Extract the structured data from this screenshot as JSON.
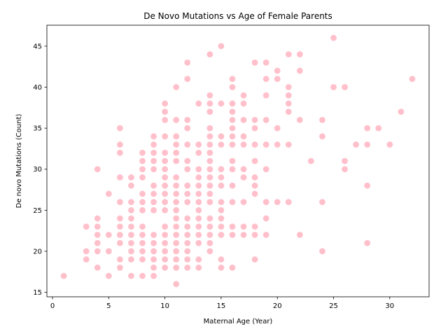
{
  "chart_data": {
    "type": "scatter",
    "title": "De Novo Mutations vs Age of Female Parents",
    "xlabel": "Maternal Age (Year)",
    "ylabel": "De novo Mutations (Count)",
    "xlim": [
      -0.5,
      33.5
    ],
    "ylim": [
      14.45,
      47.55
    ],
    "x_ticks": [
      0,
      5,
      10,
      15,
      20,
      25,
      30
    ],
    "y_ticks": [
      15,
      20,
      25,
      30,
      35,
      40,
      45
    ],
    "grid": false,
    "marker_color": "#ffc0cb",
    "points": [
      [
        1,
        17
      ],
      [
        3,
        19
      ],
      [
        3,
        20
      ],
      [
        3,
        23
      ],
      [
        4,
        18
      ],
      [
        4,
        20
      ],
      [
        4,
        21
      ],
      [
        4,
        22
      ],
      [
        4,
        23
      ],
      [
        4,
        24
      ],
      [
        4,
        30
      ],
      [
        5,
        17
      ],
      [
        5,
        20
      ],
      [
        5,
        22
      ],
      [
        5,
        27
      ],
      [
        6,
        18
      ],
      [
        6,
        19
      ],
      [
        6,
        21
      ],
      [
        6,
        22
      ],
      [
        6,
        23
      ],
      [
        6,
        24
      ],
      [
        6,
        26
      ],
      [
        6,
        29
      ],
      [
        6,
        32
      ],
      [
        6,
        33
      ],
      [
        6,
        35
      ],
      [
        7,
        17
      ],
      [
        7,
        19
      ],
      [
        7,
        20
      ],
      [
        7,
        21
      ],
      [
        7,
        22
      ],
      [
        7,
        23
      ],
      [
        7,
        24
      ],
      [
        7,
        25
      ],
      [
        7,
        26
      ],
      [
        7,
        28
      ],
      [
        7,
        29
      ],
      [
        8,
        17
      ],
      [
        8,
        19
      ],
      [
        8,
        20
      ],
      [
        8,
        21
      ],
      [
        8,
        22
      ],
      [
        8,
        23
      ],
      [
        8,
        25
      ],
      [
        8,
        26
      ],
      [
        8,
        27
      ],
      [
        8,
        29
      ],
      [
        8,
        30
      ],
      [
        8,
        31
      ],
      [
        8,
        32
      ],
      [
        9,
        17
      ],
      [
        9,
        18
      ],
      [
        9,
        19
      ],
      [
        9,
        20
      ],
      [
        9,
        21
      ],
      [
        9,
        22
      ],
      [
        9,
        25
      ],
      [
        9,
        26
      ],
      [
        9,
        27
      ],
      [
        9,
        28
      ],
      [
        9,
        30
      ],
      [
        9,
        31
      ],
      [
        9,
        32
      ],
      [
        9,
        33
      ],
      [
        9,
        34
      ],
      [
        10,
        18
      ],
      [
        10,
        19
      ],
      [
        10,
        20
      ],
      [
        10,
        21
      ],
      [
        10,
        22
      ],
      [
        10,
        23
      ],
      [
        10,
        25
      ],
      [
        10,
        26
      ],
      [
        10,
        27
      ],
      [
        10,
        28
      ],
      [
        10,
        29
      ],
      [
        10,
        30
      ],
      [
        10,
        31
      ],
      [
        10,
        32
      ],
      [
        10,
        34
      ],
      [
        10,
        36
      ],
      [
        10,
        37
      ],
      [
        10,
        38
      ],
      [
        11,
        16
      ],
      [
        11,
        18
      ],
      [
        11,
        19
      ],
      [
        11,
        20
      ],
      [
        11,
        21
      ],
      [
        11,
        22
      ],
      [
        11,
        23
      ],
      [
        11,
        24
      ],
      [
        11,
        25
      ],
      [
        11,
        26
      ],
      [
        11,
        27
      ],
      [
        11,
        28
      ],
      [
        11,
        29
      ],
      [
        11,
        31
      ],
      [
        11,
        32
      ],
      [
        11,
        33
      ],
      [
        11,
        34
      ],
      [
        11,
        36
      ],
      [
        11,
        40
      ],
      [
        12,
        18
      ],
      [
        12,
        19
      ],
      [
        12,
        20
      ],
      [
        12,
        21
      ],
      [
        12,
        22
      ],
      [
        12,
        23
      ],
      [
        12,
        24
      ],
      [
        12,
        26
      ],
      [
        12,
        27
      ],
      [
        12,
        28
      ],
      [
        12,
        30
      ],
      [
        12,
        31
      ],
      [
        12,
        33
      ],
      [
        12,
        35
      ],
      [
        12,
        36
      ],
      [
        12,
        41
      ],
      [
        12,
        43
      ],
      [
        13,
        18
      ],
      [
        13,
        19
      ],
      [
        13,
        21
      ],
      [
        13,
        22
      ],
      [
        13,
        23
      ],
      [
        13,
        24
      ],
      [
        13,
        25
      ],
      [
        13,
        26
      ],
      [
        13,
        27
      ],
      [
        13,
        28
      ],
      [
        13,
        29
      ],
      [
        13,
        30
      ],
      [
        13,
        32
      ],
      [
        13,
        33
      ],
      [
        13,
        38
      ],
      [
        14,
        20
      ],
      [
        14,
        21
      ],
      [
        14,
        22
      ],
      [
        14,
        23
      ],
      [
        14,
        24
      ],
      [
        14,
        26
      ],
      [
        14,
        27
      ],
      [
        14,
        28
      ],
      [
        14,
        29
      ],
      [
        14,
        30
      ],
      [
        14,
        31
      ],
      [
        14,
        32
      ],
      [
        14,
        33
      ],
      [
        14,
        34
      ],
      [
        14,
        35
      ],
      [
        14,
        37
      ],
      [
        14,
        38
      ],
      [
        14,
        39
      ],
      [
        14,
        44
      ],
      [
        15,
        18
      ],
      [
        15,
        19
      ],
      [
        15,
        22
      ],
      [
        15,
        23
      ],
      [
        15,
        24
      ],
      [
        15,
        25
      ],
      [
        15,
        26
      ],
      [
        15,
        28
      ],
      [
        15,
        29
      ],
      [
        15,
        30
      ],
      [
        15,
        33
      ],
      [
        15,
        34
      ],
      [
        15,
        38
      ],
      [
        15,
        45
      ],
      [
        16,
        18
      ],
      [
        16,
        22
      ],
      [
        16,
        23
      ],
      [
        16,
        26
      ],
      [
        16,
        28
      ],
      [
        16,
        30
      ],
      [
        16,
        31
      ],
      [
        16,
        33
      ],
      [
        16,
        34
      ],
      [
        16,
        35
      ],
      [
        16,
        36
      ],
      [
        16,
        37
      ],
      [
        16,
        38
      ],
      [
        16,
        40
      ],
      [
        16,
        41
      ],
      [
        17,
        22
      ],
      [
        17,
        23
      ],
      [
        17,
        26
      ],
      [
        17,
        29
      ],
      [
        17,
        30
      ],
      [
        17,
        33
      ],
      [
        17,
        34
      ],
      [
        17,
        36
      ],
      [
        17,
        38
      ],
      [
        17,
        39
      ],
      [
        18,
        19
      ],
      [
        18,
        22
      ],
      [
        18,
        23
      ],
      [
        18,
        27
      ],
      [
        18,
        28
      ],
      [
        18,
        29
      ],
      [
        18,
        31
      ],
      [
        18,
        33
      ],
      [
        18,
        35
      ],
      [
        18,
        36
      ],
      [
        18,
        43
      ],
      [
        19,
        22
      ],
      [
        19,
        24
      ],
      [
        19,
        26
      ],
      [
        19,
        30
      ],
      [
        19,
        33
      ],
      [
        19,
        36
      ],
      [
        19,
        39
      ],
      [
        19,
        41
      ],
      [
        19,
        43
      ],
      [
        20,
        26
      ],
      [
        20,
        33
      ],
      [
        20,
        35
      ],
      [
        20,
        41
      ],
      [
        20,
        42
      ],
      [
        21,
        26
      ],
      [
        21,
        33
      ],
      [
        21,
        37
      ],
      [
        21,
        38
      ],
      [
        21,
        39
      ],
      [
        21,
        40
      ],
      [
        21,
        44
      ],
      [
        22,
        22
      ],
      [
        22,
        36
      ],
      [
        22,
        42
      ],
      [
        22,
        44
      ],
      [
        23,
        31
      ],
      [
        24,
        20
      ],
      [
        24,
        26
      ],
      [
        24,
        34
      ],
      [
        24,
        36
      ],
      [
        25,
        40
      ],
      [
        25,
        46
      ],
      [
        26,
        30
      ],
      [
        26,
        31
      ],
      [
        26,
        40
      ],
      [
        27,
        33
      ],
      [
        28,
        21
      ],
      [
        28,
        28
      ],
      [
        28,
        33
      ],
      [
        28,
        35
      ],
      [
        29,
        35
      ],
      [
        30,
        33
      ],
      [
        31,
        37
      ],
      [
        32,
        41
      ]
    ]
  }
}
